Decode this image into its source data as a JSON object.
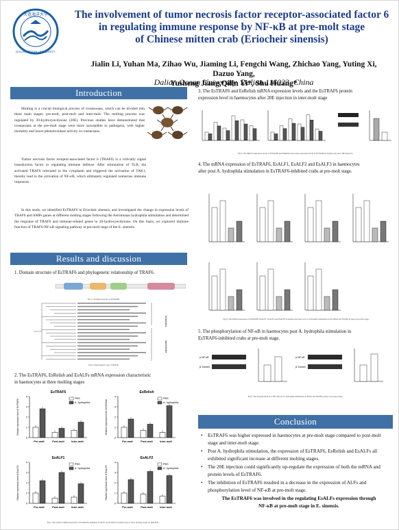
{
  "header": {
    "title_line1": "The involvement of tumor necrosis factor receptor-associated factor 6",
    "title_line2": "in regulating immune response by NF-κB at pre-molt stage",
    "title_line3": "of Chinese mitten crab (Eriocheir sinensis)",
    "authors_line1": "Jialin Li, Yuhan Ma, Zihao Wu, Jiaming Li, Fengchi Wang, Zhichao Yang, Yuting Xi, Dazuo Yang,",
    "authors_line2": "Yusheng Jiang,Qilin Yi*, Shu Huang*",
    "affiliation": "Dalian Ocean University, Dalian 116023, China",
    "logo_text_top": "大连海洋大学",
    "logo_text_bottom": "DALIAN OCEAN UNIVERSITY"
  },
  "sections": {
    "introduction": "Introduction",
    "results": "Results and discussion",
    "conclusion": "Conclusion"
  },
  "intro": {
    "p1": "Molting is a crucial biological process of crustaceans, which can be divided into three main stages: pre-molt, post-molt and inter-molt. The molting process was regulated by 20-hydroxyecdysone (20E). Previous studies have demonstrated that crustaceans at the pre-molt stage were more susceptible to pathogens, with higher mortality and lower phenoloxidase activity in crustaceans.",
    "p2": "Tumor necrosis factor receptor-associated factor 6 (TRAF6) is a critically signal transduction factor in regulating immune defense. After stimulation of TLR, the activated TRAF6 relocated to the cytoplasm and triggered the activation of TAK1, thereby lead to the activation of NF-κB, which ultimately regulated numerous immune responses.",
    "p3": "In this study, we identified EsTRAF6 in Eriocheir sinensis, and investigated the change in expression levels of TRAF6 and AMPs genes at different molting stages following the Aeromonas hydrophila stimulation and determined the response of TRAF6 and immune-related genes to 20-hydroxyecdysone. On this basis, we explored immune function of TRAF6-NF-κB signaling pathway at pre-molt stage of the E. sinensis."
  },
  "results": {
    "r1_caption": "1. Domain structure of EsTRAF6 and phylogenetic relationship of TRAF6.",
    "fig1a_caption": "Fig.1.1 Domain structure of EsTRAF6",
    "fig1b_caption": "Fig.1.2 Phylogenetic tree of TRAF6",
    "tree_group1": "Vertebrates",
    "tree_group2": "Invertebrates",
    "r2_caption_line1": "2. The EsTRAF6, EsRelish and EsALFs mRNA expression characteristic",
    "r2_caption_line2": "in haemocytes at three molting stages",
    "fig2_caption": "Fig.2. The relative mRNA expression of EsTRAF6, EsRelish, EsALF1 and EsALF2 in haemocytes at three molting stages by qRT-PCR",
    "fig2_panels": [
      "EsTRAF6",
      "EsRelish",
      "EsALF1",
      "EsALF2"
    ],
    "fig2_legend": [
      "PBS",
      "A. hydrophila"
    ],
    "fig2_xaxis": "Pre-molt  Post-molt Inter-molt",
    "fig2_ylabels": [
      "Relative expression level of EsTRAF6",
      "Relative expression level of EsRelish",
      "Relative expression level of EsALF1",
      "Relative expression level of EsALF2"
    ],
    "r3_caption_line1": "3. The EsTRAF6 and EsRelish mRNA expression levels and the EsTRAF6 protein",
    "r3_caption_line2": "expression level in haemocytes after 20E injection in inter-molt stage",
    "fig3_caption": "Fig.3. The mRNA expression levels of EsTRAF6 and EsRelish and protein expression level of EsTRAF6 in haemocytes after 20E injection.",
    "r4_caption_line1": "4. The mRNA expression of EsTRAF6, EsALF1, EsALF2 and EsALF3 in haemocytes",
    "r4_caption_line2": "after post A. hydrophila stimulation in EsTRAF6-inhibited crabs at pre-molt stage.",
    "fig4_caption": "Fig.4. The mRNA expression of EsTRAF6, EsALF1, EsALF2 and EsALF3 in haemocytes after post A. hydrophila stimulation in the RNAi and TRAF6 groups at pre-molt stage.",
    "r5_caption_line1": "5. The phosphorylation of NF-κB in haemocytes post A. hydrophila stimulation in",
    "r5_caption_line2": "EsTRAF6-inhibited crabs at pre-molt stage.",
    "fig5_caption": "Fig.5. The phosphorylation of NF-κB post A. hydrophila stimulation in RNAi and TRAF6 groups at pre-molt stage.",
    "blot_labels": [
      "p-NF-κB",
      "β-Tubulin"
    ]
  },
  "conclusion": {
    "items": [
      "EsTRAF6 was higher expressed in haemocytes at pre-molt stage compared to post-molt stage and inter-molt stage.",
      "Post A. hydrophila stimulation, the expression of EsTRAF6, EsRelish and EsALFs all exhibited significant increase at different molting stages.",
      "The 20E injection could significantly up-regulate the expression of both the mRNA and protein levels of EsTRAF6.",
      "The inhibition of EsTRAF6 resulted in a decrease in the expression of ALFs and phosphorylation level of NF-κB at pre-molt stage."
    ],
    "final_line1": "The EsTRAF6 was involved in the regulating EsALFs expression through",
    "final_line2": "NF-κB at pre-molt stage in E. sinensis."
  },
  "chart_data": [
    {
      "type": "bar",
      "title": "EsTRAF6",
      "categories": [
        "Pre-molt",
        "Post-molt",
        "Inter-molt"
      ],
      "series": [
        {
          "name": "PBS",
          "values": [
            1.0,
            0.5,
            0.7
          ]
        },
        {
          "name": "A. hydrophila",
          "values": [
            2.8,
            0.9,
            1.5
          ]
        }
      ],
      "ylim": [
        0,
        4
      ]
    },
    {
      "type": "bar",
      "title": "EsRelish",
      "categories": [
        "Pre-molt",
        "Post-molt",
        "Inter-molt"
      ],
      "series": [
        {
          "name": "PBS",
          "values": [
            1.0,
            0.7,
            0.5
          ]
        },
        {
          "name": "A. hydrophila",
          "values": [
            1.8,
            1.3,
            3.1
          ]
        }
      ],
      "ylim": [
        0,
        4
      ]
    },
    {
      "type": "bar",
      "title": "EsALF1",
      "categories": [
        "Pre-molt",
        "Post-molt",
        "Inter-molt"
      ],
      "series": [
        {
          "name": "PBS",
          "values": [
            1.0,
            0.5,
            0.6
          ]
        },
        {
          "name": "A. hydrophila",
          "values": [
            2.2,
            3.0,
            1.9
          ]
        }
      ],
      "ylim": [
        0,
        4
      ]
    },
    {
      "type": "bar",
      "title": "EsALF2",
      "categories": [
        "Pre-molt",
        "Post-molt",
        "Inter-molt"
      ],
      "series": [
        {
          "name": "PBS",
          "values": [
            1.0,
            0.9,
            0.7
          ]
        },
        {
          "name": "A. hydrophila",
          "values": [
            2.3,
            3.1,
            2.7
          ]
        }
      ],
      "ylim": [
        0,
        4
      ]
    }
  ],
  "colors": {
    "title": "#1b3c8a",
    "section_bg": "#3f70a6",
    "bar_pbs": "#ffffff",
    "bar_treat": "#555555"
  }
}
